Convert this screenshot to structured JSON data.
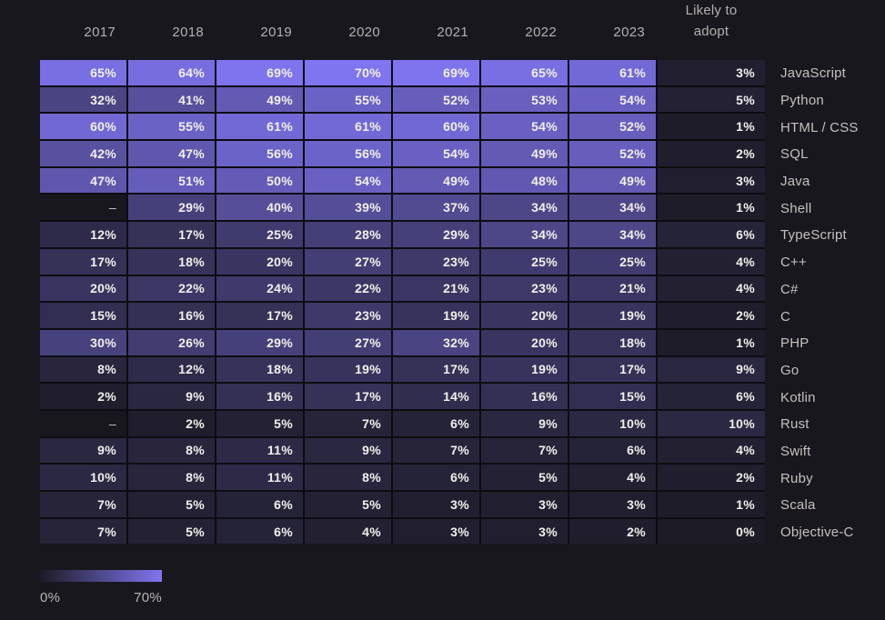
{
  "header": {
    "likely_line1": "Likely to",
    "likely_line2": "adopt"
  },
  "legend": {
    "min_label": "0%",
    "max_label": "70%"
  },
  "colors": {
    "background": "#19171e",
    "heat_low": "#1d1b26",
    "heat_high": "#8075f0",
    "grid_line": "#0d0c11",
    "cell_text": "#f2f0eb",
    "label_text": "#c4c1bc",
    "header_text": "#b3b0ac"
  },
  "chart_data": {
    "type": "heatmap",
    "title": "",
    "columns": [
      "2017",
      "2018",
      "2019",
      "2020",
      "2021",
      "2022",
      "2023",
      "Likely to adopt"
    ],
    "value_suffix": "%",
    "missing_display": "–",
    "color_scale": {
      "min": 0,
      "max": 70,
      "low": "#1d1b26",
      "high": "#8075f0"
    },
    "legend": {
      "min_label": "0%",
      "max_label": "70%"
    },
    "series": [
      {
        "name": "JavaScript",
        "values": [
          65,
          64,
          69,
          70,
          69,
          65,
          61,
          3
        ]
      },
      {
        "name": "Python",
        "values": [
          32,
          41,
          49,
          55,
          52,
          53,
          54,
          5
        ]
      },
      {
        "name": "HTML / CSS",
        "values": [
          60,
          55,
          61,
          61,
          60,
          54,
          52,
          1
        ]
      },
      {
        "name": "SQL",
        "values": [
          42,
          47,
          56,
          56,
          54,
          49,
          52,
          2
        ]
      },
      {
        "name": "Java",
        "values": [
          47,
          51,
          50,
          54,
          49,
          48,
          49,
          3
        ]
      },
      {
        "name": "Shell",
        "values": [
          null,
          29,
          40,
          39,
          37,
          34,
          34,
          1
        ]
      },
      {
        "name": "TypeScript",
        "values": [
          12,
          17,
          25,
          28,
          29,
          34,
          34,
          6
        ]
      },
      {
        "name": "C++",
        "values": [
          17,
          18,
          20,
          27,
          23,
          25,
          25,
          4
        ]
      },
      {
        "name": "C#",
        "values": [
          20,
          22,
          24,
          22,
          21,
          23,
          21,
          4
        ]
      },
      {
        "name": "C",
        "values": [
          15,
          16,
          17,
          23,
          19,
          20,
          19,
          2
        ]
      },
      {
        "name": "PHP",
        "values": [
          30,
          26,
          29,
          27,
          32,
          20,
          18,
          1
        ]
      },
      {
        "name": "Go",
        "values": [
          8,
          12,
          18,
          19,
          17,
          19,
          17,
          9
        ]
      },
      {
        "name": "Kotlin",
        "values": [
          2,
          9,
          16,
          17,
          14,
          16,
          15,
          6
        ]
      },
      {
        "name": "Rust",
        "values": [
          null,
          2,
          5,
          7,
          6,
          9,
          10,
          10
        ]
      },
      {
        "name": "Swift",
        "values": [
          9,
          8,
          11,
          9,
          7,
          7,
          6,
          4
        ]
      },
      {
        "name": "Ruby",
        "values": [
          10,
          8,
          11,
          8,
          6,
          5,
          4,
          2
        ]
      },
      {
        "name": "Scala",
        "values": [
          7,
          5,
          6,
          5,
          3,
          3,
          3,
          1
        ]
      },
      {
        "name": "Objective-C",
        "values": [
          7,
          5,
          6,
          4,
          3,
          3,
          2,
          0
        ]
      }
    ]
  }
}
